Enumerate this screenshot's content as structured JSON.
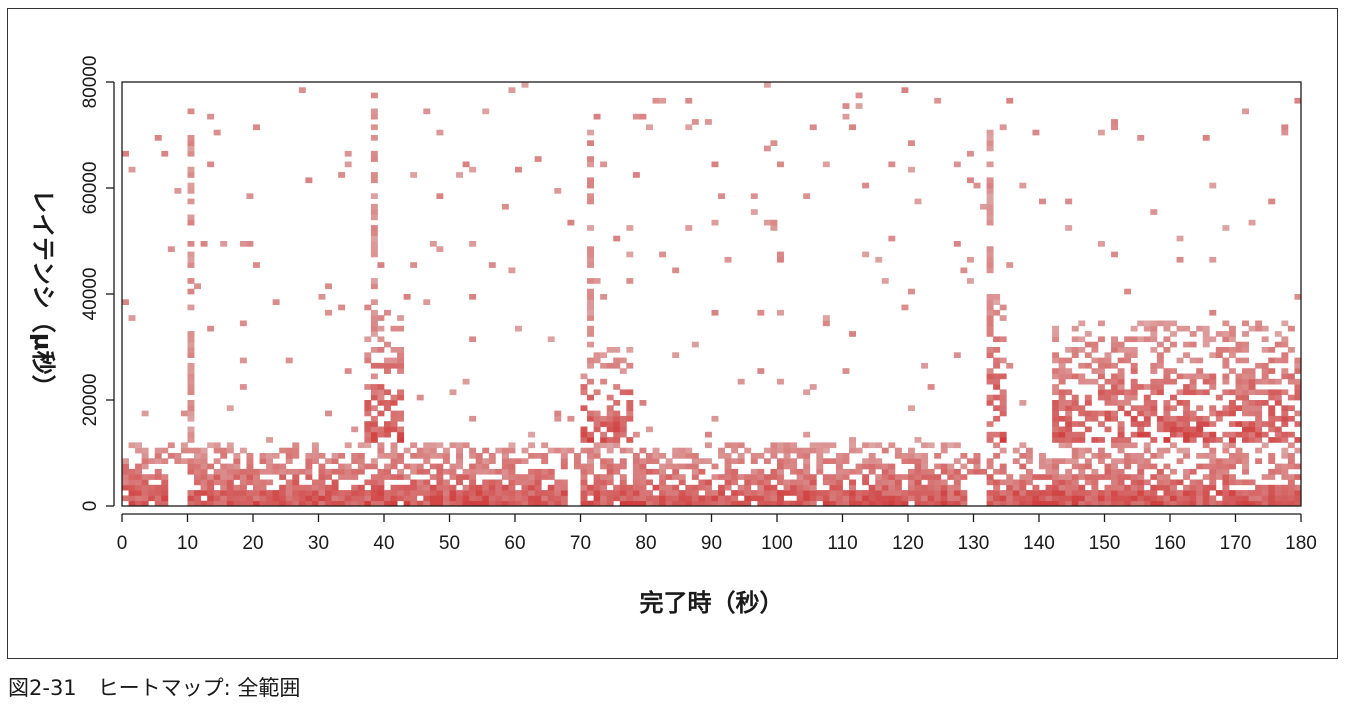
{
  "caption": "図2-31　ヒートマップ: 全範囲",
  "chart_data": {
    "type": "heatmap",
    "title": "",
    "xlabel": "完了時（秒）",
    "ylabel": "レイテンシ（μ秒）",
    "xlim": [
      0,
      180
    ],
    "ylim": [
      0,
      80000
    ],
    "x_ticks": [
      "0",
      "10",
      "20",
      "30",
      "40",
      "50",
      "60",
      "70",
      "80",
      "90",
      "100",
      "110",
      "120",
      "130",
      "140",
      "150",
      "160",
      "170",
      "180"
    ],
    "y_ticks": [
      "0",
      "20000",
      "40000",
      "60000",
      "80000"
    ],
    "bucket_seconds": 1,
    "bucket_latency": 1000,
    "color_low": "#e6e6e6",
    "color_high": "#d03c3c",
    "grid": false,
    "legend": "none",
    "spikes": [
      {
        "x": 10,
        "y_max": 77000
      },
      {
        "x": 38,
        "y_max": 78000
      },
      {
        "x": 71,
        "y_max": 71000
      },
      {
        "x": 132,
        "y_max": 72000
      }
    ],
    "gaps": [
      {
        "x_start": 7,
        "x_end": 9,
        "y_max": 8000
      },
      {
        "x_start": 68,
        "x_end": 69,
        "y_max": 7000
      },
      {
        "x_start": 129,
        "x_end": 131,
        "y_max": 6000
      }
    ],
    "regions": [
      {
        "x_start": 0,
        "x_end": 180,
        "y_min": 0,
        "y_max": 12000,
        "density": 0.85
      },
      {
        "x_start": 37,
        "x_end": 42,
        "y_min": 12000,
        "y_max": 36000,
        "density": 0.7
      },
      {
        "x_start": 70,
        "x_end": 77,
        "y_min": 12000,
        "y_max": 30000,
        "density": 0.6
      },
      {
        "x_start": 132,
        "x_end": 134,
        "y_min": 12000,
        "y_max": 40000,
        "density": 0.6
      },
      {
        "x_start": 142,
        "x_end": 180,
        "y_min": 12000,
        "y_max": 35000,
        "density": 0.65
      }
    ]
  }
}
